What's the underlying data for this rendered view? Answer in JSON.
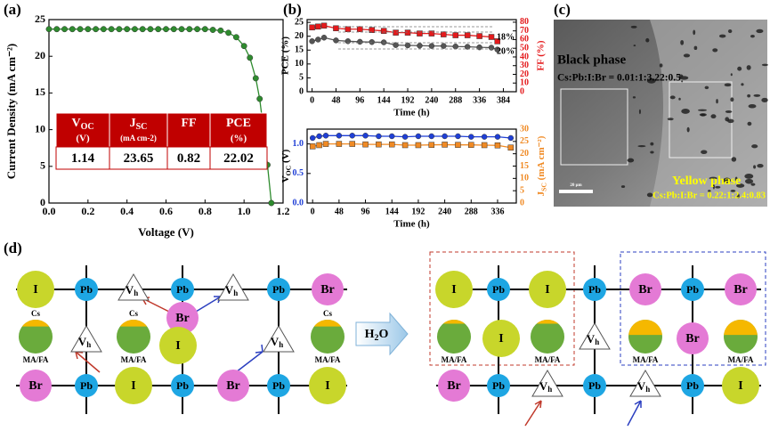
{
  "panel_labels": [
    "(a)",
    "(b)",
    "(c)",
    "(d)"
  ],
  "chart_data": [
    {
      "type": "line",
      "xlabel": "Voltage (V)",
      "ylabel": "Current Density (mA cm⁻²)",
      "color": "#2e8b2e",
      "x": [
        0,
        0.04,
        0.08,
        0.12,
        0.16,
        0.2,
        0.24,
        0.28,
        0.32,
        0.36,
        0.4,
        0.44,
        0.48,
        0.52,
        0.56,
        0.6,
        0.64,
        0.68,
        0.72,
        0.76,
        0.8,
        0.84,
        0.88,
        0.92,
        0.96,
        1.0,
        1.03,
        1.06,
        1.08,
        1.1,
        1.12,
        1.14
      ],
      "values": [
        23.7,
        23.7,
        23.7,
        23.7,
        23.7,
        23.7,
        23.7,
        23.7,
        23.7,
        23.7,
        23.7,
        23.7,
        23.7,
        23.7,
        23.7,
        23.7,
        23.7,
        23.7,
        23.7,
        23.7,
        23.7,
        23.6,
        23.5,
        23.2,
        22.6,
        21.4,
        19.8,
        17.0,
        14.2,
        10.0,
        5.2,
        0
      ],
      "xlim": [
        0,
        1.2
      ],
      "ylim": [
        0,
        25
      ],
      "xticks": [
        {
          "value": 0,
          "label": "0.0"
        },
        0.2,
        0.4,
        0.6,
        0.8,
        {
          "value": 1,
          "label": "1.0"
        },
        1.2
      ],
      "yticks": [
        0,
        5,
        10,
        15,
        20,
        25
      ]
    },
    {
      "type": "line",
      "xlabel": "Time (h)",
      "ylabel": "PCE (%)",
      "y2label": "FF (%)",
      "annotations": [
        "18%",
        "20%"
      ],
      "x": [
        0,
        12,
        24,
        48,
        72,
        96,
        120,
        144,
        168,
        192,
        216,
        240,
        264,
        288,
        312,
        336,
        360,
        372
      ],
      "series": [
        {
          "color": "#555555",
          "values": [
            18.2,
            18.8,
            19.5,
            18.5,
            18.2,
            18.0,
            17.9,
            17.8,
            16.8,
            16.7,
            16.6,
            16.5,
            16.5,
            16.3,
            16.2,
            16.0,
            15.9,
            15.2
          ]
        },
        {
          "color": "#e41a1c",
          "axis": "y2",
          "values": [
            74,
            75,
            76,
            73,
            72,
            72,
            71,
            70,
            68,
            68,
            67,
            67,
            66,
            65,
            65,
            64,
            63,
            58
          ]
        }
      ],
      "xlim": [
        -10,
        410
      ],
      "ylim": [
        0,
        26
      ],
      "y2lim": [
        0,
        83
      ],
      "xticks": [
        0,
        48,
        96,
        144,
        192,
        240,
        288,
        336,
        384
      ],
      "yticks": [
        0,
        5,
        10,
        15,
        20,
        25
      ],
      "y2ticks": [
        0,
        10,
        20,
        30,
        40,
        50,
        60,
        70,
        80
      ]
    },
    {
      "type": "line",
      "xlabel": "Time (h)",
      "ylabel": {
        "main": "V",
        "sub": "OC",
        "rest": " (V)"
      },
      "y2label": {
        "main": "J",
        "sub": "SC",
        "rest": " (mA cm⁻²)"
      },
      "x": [
        0,
        12,
        24,
        48,
        72,
        96,
        120,
        144,
        168,
        192,
        216,
        240,
        264,
        288,
        312,
        336,
        360
      ],
      "series": [
        {
          "color": "#1f3fd6",
          "values": [
            1.1,
            1.13,
            1.14,
            1.14,
            1.14,
            1.14,
            1.13,
            1.13,
            1.12,
            1.13,
            1.13,
            1.13,
            1.13,
            1.12,
            1.12,
            1.12,
            1.1
          ]
        },
        {
          "color": "#f08a24",
          "axis": "y2",
          "values": [
            23,
            23.5,
            24,
            24,
            24,
            23.8,
            23.8,
            23.8,
            23.5,
            23.5,
            23.6,
            23.7,
            23.6,
            23.6,
            23.5,
            23.4,
            22.5
          ]
        }
      ],
      "xlim": [
        -10,
        370
      ],
      "ylim": [
        0,
        1.25
      ],
      "y2lim": [
        0,
        30
      ],
      "xticks": [
        0,
        48,
        96,
        144,
        192,
        240,
        288,
        336
      ],
      "yticks": [
        {
          "value": 0,
          "label": "0.0"
        },
        0.5,
        {
          "value": 1,
          "label": "1.0"
        }
      ],
      "y2ticks": [
        0,
        5,
        10,
        15,
        20,
        25,
        30
      ]
    }
  ],
  "table": {
    "header": [
      {
        "main": "V",
        "sub": "OC",
        "rest": "(V)"
      },
      {
        "main": "J",
        "sub": "SC",
        "rest": "(mA cm-2)"
      },
      {
        "main": "FF"
      },
      {
        "main": "PCE",
        "rest": "(%)"
      }
    ],
    "rows": [
      [
        1.14,
        23.65,
        0.82,
        22.02
      ]
    ]
  },
  "sem": {
    "black_label": "Black phase",
    "black_ratio": "Cs:Pb:I:Br = 0.01:1:3.22:0.5",
    "yellow_label": "Yellow phase",
    "yellow_ratio": "Cs:Pb:I:Br = 0.22:1:2.4:0.83",
    "scale": "20 μm"
  },
  "diagram": {
    "reagent": {
      "main": "H",
      "sub": "2",
      "rest": "O"
    },
    "left": [
      {
        "label": "I"
      },
      {
        "label": "Pb"
      },
      {
        "label": "V",
        "sub": "h"
      },
      {
        "label": "Pb"
      },
      {
        "label": "V",
        "sub": "h"
      },
      {
        "label": "Pb"
      },
      {
        "label": "Br"
      },
      {
        "top": "Cs",
        "bottom": "MA/FA"
      },
      {
        "label": "V",
        "sub": "h"
      },
      {
        "top": "Cs",
        "bottom": "MA/FA"
      },
      {
        "label": "Br"
      },
      {
        "label": "I"
      },
      {
        "label": "V",
        "sub": "h"
      },
      {
        "top": "Cs",
        "bottom": "MA/FA"
      },
      {
        "label": "Br"
      },
      {
        "label": "Pb"
      },
      {
        "label": "I"
      },
      {
        "label": "Pb"
      },
      {
        "label": "Br"
      },
      {
        "label": "Pb"
      },
      {
        "label": "I"
      }
    ],
    "right": [
      {
        "label": "I"
      },
      {
        "label": "Pb"
      },
      {
        "label": "I"
      },
      {
        "label": "Pb"
      },
      {
        "label": "Br"
      },
      {
        "label": "Pb"
      },
      {
        "label": "Br"
      },
      {
        "bottom": "MA/FA"
      },
      {
        "label": "I"
      },
      {
        "bottom": "MA/FA"
      },
      {
        "label": "V",
        "sub": "h"
      },
      {
        "bottom": "MA/FA"
      },
      {
        "label": "Br"
      },
      {
        "bottom": "MA/FA"
      },
      {
        "label": "Br"
      },
      {
        "label": "Pb"
      },
      {
        "label": "V",
        "sub": "h"
      },
      {
        "label": "Pb"
      },
      {
        "label": "V",
        "sub": "h"
      },
      {
        "label": "Pb"
      },
      {
        "label": "I"
      }
    ]
  }
}
